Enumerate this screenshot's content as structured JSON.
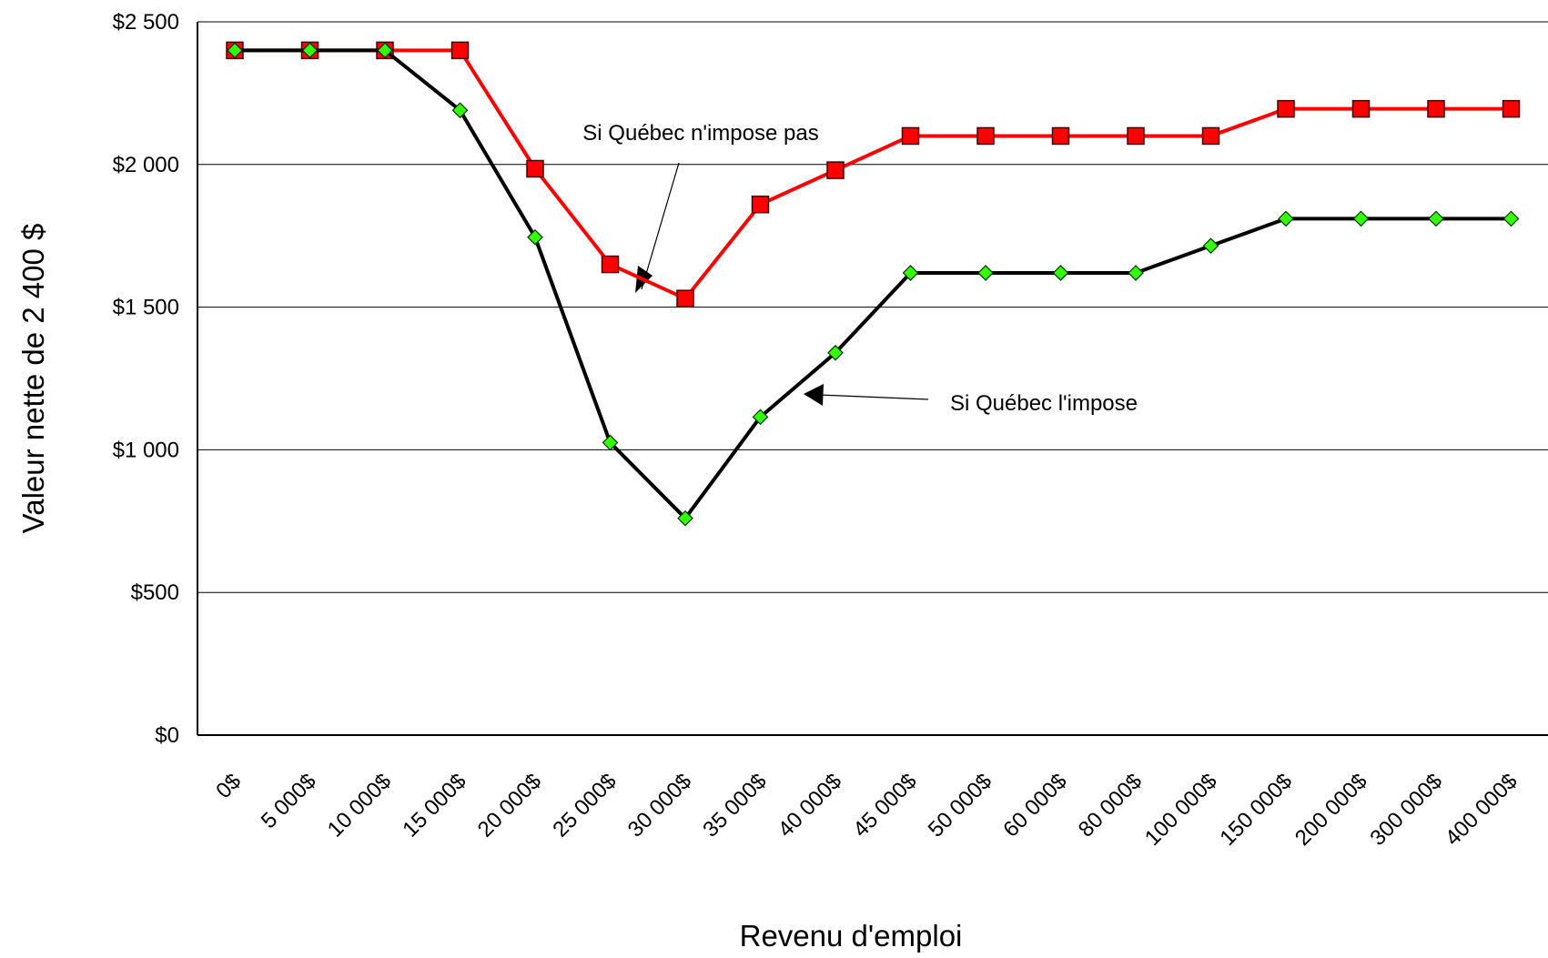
{
  "chart_data": {
    "type": "line",
    "y_axis_label": "Valeur nette de 2 400 $",
    "x_axis_label": "Revenu d'emploi",
    "categories": [
      "0$",
      "5 000$",
      "10 000$",
      "15 000$",
      "20 000$",
      "25 000$",
      "30 000$",
      "35 000$",
      "40 000$",
      "45 000$",
      "50 000$",
      "60 000$",
      "80 000$",
      "100 000$",
      "150 000$",
      "200 000$",
      "300 000$",
      "400 000$"
    ],
    "series": [
      {
        "color": "#ff0000",
        "marker": "square",
        "marker_color": "#ff0000",
        "values": [
          2400,
          2400,
          2400,
          2400,
          1985,
          1650,
          1530,
          1860,
          1980,
          2100,
          2100,
          2100,
          2100,
          2100,
          2195,
          2195,
          2195,
          2195
        ]
      },
      {
        "color": "#000000",
        "marker": "diamond",
        "marker_color": "#33ff00",
        "values": [
          2400,
          2400,
          2400,
          2190,
          1745,
          1025,
          760,
          1115,
          1340,
          1620,
          1620,
          1620,
          1620,
          1715,
          1810,
          1810,
          1810,
          1810
        ]
      }
    ],
    "annotations": [
      "Si Québec n'impose pas",
      "Si Québec l'impose"
    ],
    "ylim": [
      0,
      2500
    ],
    "yticks": [
      {
        "value": 0,
        "label": "$0"
      },
      {
        "value": 500,
        "label": "$500"
      },
      {
        "value": 1000,
        "label": "$1 000"
      },
      {
        "value": 1500,
        "label": "$1 500"
      },
      {
        "value": 2000,
        "label": "$2 000"
      },
      {
        "value": 2500,
        "label": "$2 500"
      }
    ],
    "grid": true
  }
}
